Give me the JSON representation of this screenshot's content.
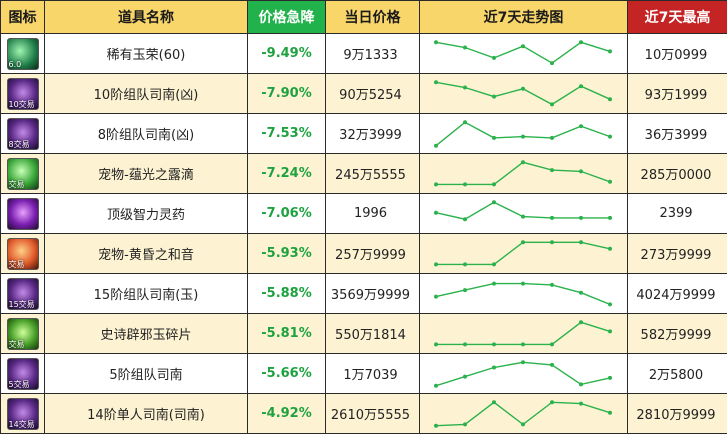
{
  "table": {
    "headers": {
      "icon": "图标",
      "name": "道具名称",
      "drop": "价格急降",
      "price": "当日价格",
      "trend": "近7天走势图",
      "high": "近7天最高"
    },
    "colors": {
      "header_bg": "#f8d66a",
      "drop_header_bg": "#22b24c",
      "high_header_bg": "#c42424",
      "drop_text": "#1ea23f",
      "trend_line": "#2bb24c",
      "row_alt_bg": "#fdf3d3"
    },
    "rows": [
      {
        "icon": "gem-icon",
        "icon_tag": "6.0",
        "name": "稀有玉荣(60)",
        "drop": "-9.49%",
        "price": "9万1333",
        "high": "10万0999",
        "trend": [
          0.95,
          0.75,
          0.35,
          0.8,
          0.15,
          0.95,
          0.6
        ]
      },
      {
        "icon": "compass-icon",
        "icon_tag": "10交易",
        "name": "10阶组队司南(凶)",
        "drop": "-7.90%",
        "price": "90万5254",
        "high": "93万1999",
        "trend": [
          0.95,
          0.75,
          0.4,
          0.7,
          0.1,
          0.8,
          0.3
        ]
      },
      {
        "icon": "compass-icon",
        "icon_tag": "8交易",
        "name": "8阶组队司南(凶)",
        "drop": "-7.53%",
        "price": "32万3999",
        "high": "36万3999",
        "trend": [
          0.05,
          0.95,
          0.35,
          0.4,
          0.35,
          0.8,
          0.4
        ]
      },
      {
        "icon": "drop-icon",
        "icon_tag": "交易",
        "name": "宠物-蕴光之露滴",
        "drop": "-7.24%",
        "price": "245万5555",
        "high": "285万0000",
        "trend": [
          0.1,
          0.1,
          0.1,
          0.95,
          0.65,
          0.6,
          0.2
        ]
      },
      {
        "icon": "potion-icon",
        "icon_tag": "",
        "name": "顶级智力灵药",
        "drop": "-7.06%",
        "price": "1996",
        "high": "2399",
        "trend": [
          0.55,
          0.3,
          0.95,
          0.4,
          0.35,
          0.35,
          0.35
        ]
      },
      {
        "icon": "music-icon",
        "icon_tag": "交易",
        "name": "宠物-黄昏之和音",
        "drop": "-5.93%",
        "price": "257万9999",
        "high": "273万9999",
        "trend": [
          0.1,
          0.1,
          0.1,
          0.95,
          0.95,
          0.95,
          0.7
        ]
      },
      {
        "icon": "compass-icon",
        "icon_tag": "15交易",
        "name": "15阶组队司南(玉)",
        "drop": "-5.88%",
        "price": "3569万9999",
        "high": "4024万9999",
        "trend": [
          0.4,
          0.65,
          0.9,
          0.9,
          0.85,
          0.55,
          0.1
        ]
      },
      {
        "icon": "jade-icon",
        "icon_tag": "交易",
        "name": "史诗辟邪玉碎片",
        "drop": "-5.81%",
        "price": "550万1814",
        "high": "582万9999",
        "trend": [
          0.1,
          0.1,
          0.1,
          0.1,
          0.1,
          0.95,
          0.6
        ]
      },
      {
        "icon": "compass-icon",
        "icon_tag": "5交易",
        "name": "5阶组队司南",
        "drop": "-5.66%",
        "price": "1万7039",
        "high": "2万5800",
        "trend": [
          0.05,
          0.4,
          0.75,
          0.95,
          0.85,
          0.1,
          0.35
        ]
      },
      {
        "icon": "compass-icon",
        "icon_tag": "14交易",
        "name": "14阶单人司南(司南)",
        "drop": "-4.92%",
        "price": "2610万5555",
        "high": "2810万9999",
        "trend": [
          0.05,
          0.1,
          0.95,
          0.1,
          0.95,
          0.9,
          0.55
        ]
      }
    ]
  }
}
